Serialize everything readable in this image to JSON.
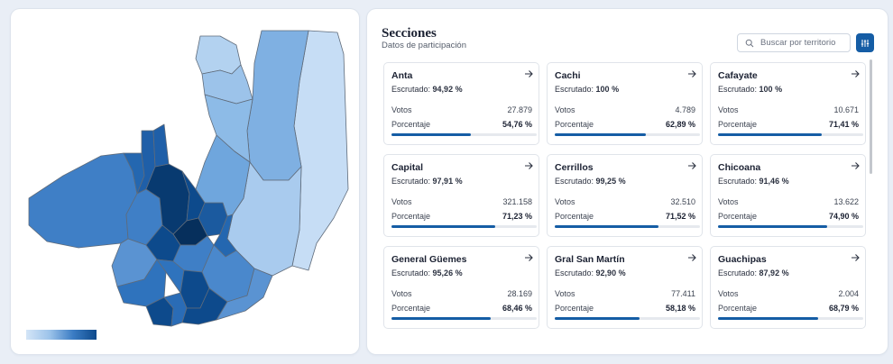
{
  "map": {
    "legend_colors": [
      "#d4e5f7",
      "#9cc3ea",
      "#3b7cc4",
      "#0d4a8c"
    ],
    "region_colors": {
      "very_light": "#c6ddf5",
      "light": "#9cc3ea",
      "light_mid": "#6fa6dd",
      "mid": "#3f7fc6",
      "mid_dark": "#2467b0",
      "dark": "#0d4a8c",
      "darkest": "#083a70"
    },
    "border_color": "#5f6b7a"
  },
  "sections": {
    "title": "Secciones",
    "subtitle": "Datos de participación",
    "search_placeholder": "Buscar por territorio",
    "escrutado_label": "Escrutado:",
    "votos_label": "Votos",
    "porcentaje_label": "Porcentaje",
    "accent_color": "#155da5",
    "cards": [
      {
        "name": "Anta",
        "escrutado": "94,92 %",
        "votos": "27.879",
        "porcentaje": "54,76 %",
        "pct": 54.76
      },
      {
        "name": "Cachi",
        "escrutado": "100 %",
        "votos": "4.789",
        "porcentaje": "62,89 %",
        "pct": 62.89
      },
      {
        "name": "Cafayate",
        "escrutado": "100 %",
        "votos": "10.671",
        "porcentaje": "71,41 %",
        "pct": 71.41
      },
      {
        "name": "Capital",
        "escrutado": "97,91 %",
        "votos": "321.158",
        "porcentaje": "71,23 %",
        "pct": 71.23
      },
      {
        "name": "Cerrillos",
        "escrutado": "99,25 %",
        "votos": "32.510",
        "porcentaje": "71,52 %",
        "pct": 71.52
      },
      {
        "name": "Chicoana",
        "escrutado": "91,46 %",
        "votos": "13.622",
        "porcentaje": "74,90 %",
        "pct": 74.9
      },
      {
        "name": "General Güemes",
        "escrutado": "95,26 %",
        "votos": "28.169",
        "porcentaje": "68,46 %",
        "pct": 68.46
      },
      {
        "name": "Gral San Martín",
        "escrutado": "92,90 %",
        "votos": "77.411",
        "porcentaje": "58,18 %",
        "pct": 58.18
      },
      {
        "name": "Guachipas",
        "escrutado": "87,92 %",
        "votos": "2.004",
        "porcentaje": "68,79 %",
        "pct": 68.79
      }
    ]
  }
}
